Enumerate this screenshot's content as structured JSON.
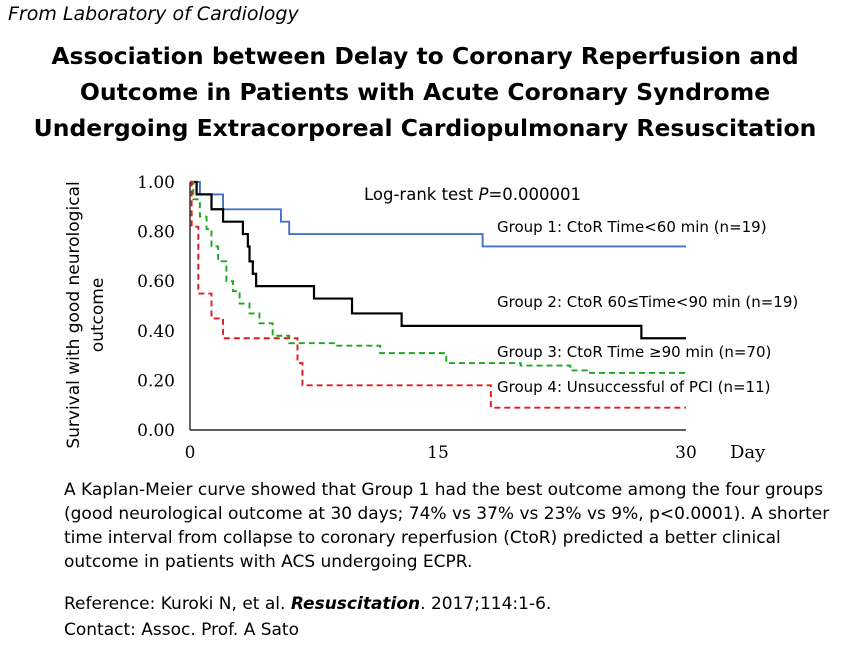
{
  "source_line": "From Laboratory of Cardiology",
  "title_lines": [
    "Association between Delay to Coronary Reperfusion and",
    "Outcome in Patients with Acute Coronary Syndrome",
    "Undergoing Extracorporeal Cardiopulmonary Resuscitation"
  ],
  "chart_data": {
    "type": "line",
    "subtype": "kaplan-meier step curve",
    "ylabel_lines": [
      "Survival with good neurological",
      "outcome"
    ],
    "xlabel": "Day",
    "xlim": [
      0,
      30
    ],
    "ylim": [
      0,
      1.0
    ],
    "x_ticks": [
      "0",
      "15",
      "30"
    ],
    "y_ticks": [
      "0.00",
      "0.20",
      "0.40",
      "0.60",
      "0.80",
      "1.00"
    ],
    "grid": false,
    "annotation": {
      "prefix": "Log-rank test ",
      "italic": "P",
      "suffix": "=0.000001"
    },
    "series": [
      {
        "name": "Group 1: CtoR Time<60 min (n=19)",
        "color": "#4472c4",
        "dash": "solid",
        "points": [
          [
            0,
            1.0
          ],
          [
            0.6,
            0.95
          ],
          [
            2,
            0.89
          ],
          [
            5.5,
            0.84
          ],
          [
            6,
            0.79
          ],
          [
            17.7,
            0.74
          ],
          [
            30,
            0.74
          ]
        ]
      },
      {
        "name": "Group 2: CtoR 60≤Time<90 min (n=19)",
        "color": "#000000",
        "dash": "solid",
        "points": [
          [
            0,
            1.0
          ],
          [
            0.4,
            0.95
          ],
          [
            1.3,
            0.89
          ],
          [
            2,
            0.84
          ],
          [
            3.2,
            0.79
          ],
          [
            3.5,
            0.74
          ],
          [
            3.6,
            0.68
          ],
          [
            3.8,
            0.63
          ],
          [
            4,
            0.58
          ],
          [
            7.5,
            0.53
          ],
          [
            9.8,
            0.47
          ],
          [
            12.8,
            0.42
          ],
          [
            27.3,
            0.37
          ],
          [
            30,
            0.37
          ]
        ]
      },
      {
        "name": "Group 3: CtoR Time ≥90 min (n=70)",
        "color": "#1ba81b",
        "dash": "dash",
        "points": [
          [
            0,
            1.0
          ],
          [
            0.2,
            0.93
          ],
          [
            0.6,
            0.86
          ],
          [
            1,
            0.81
          ],
          [
            1.3,
            0.74
          ],
          [
            1.7,
            0.68
          ],
          [
            2.2,
            0.6
          ],
          [
            2.6,
            0.56
          ],
          [
            3,
            0.51
          ],
          [
            3.6,
            0.47
          ],
          [
            4.2,
            0.43
          ],
          [
            5,
            0.38
          ],
          [
            6,
            0.35
          ],
          [
            8.8,
            0.34
          ],
          [
            11.5,
            0.31
          ],
          [
            15.5,
            0.27
          ],
          [
            20,
            0.26
          ],
          [
            23,
            0.24
          ],
          [
            24,
            0.23
          ],
          [
            30,
            0.23
          ]
        ]
      },
      {
        "name": "Group 4: Unsuccessful of PCI (n=11)",
        "color": "#e8191d",
        "dash": "dash",
        "points": [
          [
            0,
            1.0
          ],
          [
            0.1,
            0.82
          ],
          [
            0.5,
            0.55
          ],
          [
            1.3,
            0.45
          ],
          [
            2,
            0.37
          ],
          [
            6.5,
            0.27
          ],
          [
            6.8,
            0.18
          ],
          [
            18.2,
            0.09
          ],
          [
            30,
            0.09
          ]
        ]
      }
    ]
  },
  "caption": "A Kaplan-Meier curve showed that Group 1 had the best outcome among the four groups (good neurological outcome at 30 days; 74% vs 37% vs 23% vs 9%, p<0.0001). A shorter time interval from collapse to coronary reperfusion (CtoR) predicted a better clinical outcome in patients with ACS undergoing ECPR.",
  "reference": {
    "prefix": "Reference: Kuroki N, et al. ",
    "journal": "Resuscitation",
    "suffix": ". 2017;114:1-6."
  },
  "contact": "Contact: Assoc. Prof. A Sato"
}
